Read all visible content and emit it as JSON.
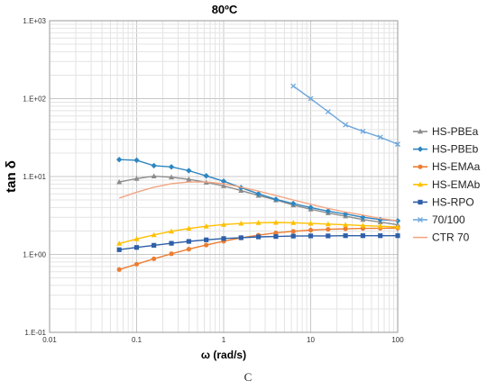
{
  "chart_data": {
    "type": "line",
    "title": "80ºC",
    "xlabel": "ω (rad/s)",
    "ylabel": "tan δ",
    "x_scale": "log",
    "y_scale": "log",
    "xlim": [
      0.01,
      100
    ],
    "ylim": [
      0.1,
      1000
    ],
    "x_tick_labels": [
      "0.01",
      "0.1",
      "1",
      "10",
      "100"
    ],
    "y_tick_labels": [
      "1.E-01",
      "1.E+00",
      "1.E+01",
      "1.E+02",
      "1.E+03"
    ],
    "grid": true,
    "legend_position": "right",
    "series": [
      {
        "name": "HS-PBEa",
        "color": "#8c8c8c",
        "marker": "triangle",
        "x": [
          0.0631,
          0.1,
          0.158,
          0.251,
          0.398,
          0.631,
          1,
          1.585,
          2.512,
          3.981,
          6.31,
          10,
          15.85,
          25.12,
          39.81,
          63.1,
          100
        ],
        "y": [
          8.5,
          9.4,
          10.1,
          9.8,
          9.2,
          8.4,
          7.6,
          6.6,
          5.7,
          5.0,
          4.3,
          3.8,
          3.4,
          3.1,
          2.8,
          2.6,
          2.4
        ]
      },
      {
        "name": "HS-PBEb",
        "color": "#2e86c1",
        "marker": "diamond",
        "x": [
          0.0631,
          0.1,
          0.158,
          0.251,
          0.398,
          0.631,
          1,
          1.585,
          2.512,
          3.981,
          6.31,
          10,
          15.85,
          25.12,
          39.81,
          63.1,
          100
        ],
        "y": [
          16.5,
          16.2,
          13.8,
          13.3,
          11.9,
          10.2,
          8.7,
          7.2,
          6.0,
          5.1,
          4.5,
          4.0,
          3.6,
          3.3,
          3.0,
          2.8,
          2.7
        ]
      },
      {
        "name": "HS-EMAa",
        "color": "#ed7d31",
        "marker": "circle",
        "x": [
          0.0631,
          0.1,
          0.158,
          0.251,
          0.398,
          0.631,
          1,
          1.585,
          2.512,
          3.981,
          6.31,
          10,
          15.85,
          25.12,
          39.81,
          63.1,
          100
        ],
        "y": [
          0.64,
          0.75,
          0.88,
          1.02,
          1.17,
          1.32,
          1.48,
          1.63,
          1.77,
          1.89,
          1.98,
          2.05,
          2.1,
          2.13,
          2.16,
          2.17,
          2.18
        ]
      },
      {
        "name": "HS-EMAb",
        "color": "#ffc000",
        "marker": "triangle",
        "x": [
          0.0631,
          0.1,
          0.158,
          0.251,
          0.398,
          0.631,
          1,
          1.585,
          2.512,
          3.981,
          6.31,
          10,
          15.85,
          25.12,
          39.81,
          63.1,
          100
        ],
        "y": [
          1.38,
          1.58,
          1.78,
          1.98,
          2.15,
          2.3,
          2.42,
          2.5,
          2.55,
          2.57,
          2.55,
          2.5,
          2.45,
          2.4,
          2.35,
          2.3,
          2.25
        ]
      },
      {
        "name": "HS-RPO",
        "color": "#2e5fa8",
        "marker": "square",
        "x": [
          0.0631,
          0.1,
          0.158,
          0.251,
          0.398,
          0.631,
          1,
          1.585,
          2.512,
          3.981,
          6.31,
          10,
          15.85,
          25.12,
          39.81,
          63.1,
          100
        ],
        "y": [
          1.15,
          1.23,
          1.31,
          1.39,
          1.47,
          1.54,
          1.6,
          1.64,
          1.68,
          1.7,
          1.72,
          1.73,
          1.73,
          1.74,
          1.74,
          1.74,
          1.74
        ]
      },
      {
        "name": "70/100",
        "color": "#6fa8dc",
        "marker": "cross",
        "x": [
          6.31,
          10,
          15.85,
          25.12,
          39.81,
          63.1,
          100
        ],
        "y": [
          145,
          100,
          68,
          46,
          38,
          32,
          26
        ]
      },
      {
        "name": "CTR 70",
        "color": "#f4a582",
        "marker": "none",
        "x": [
          0.0631,
          0.1,
          0.158,
          0.251,
          0.398,
          0.631,
          1,
          1.585,
          2.512,
          3.981,
          6.31,
          10,
          15.85,
          25.12,
          39.81,
          63.1,
          100
        ],
        "y": [
          5.3,
          6.3,
          7.3,
          8.1,
          8.5,
          8.5,
          8.1,
          7.3,
          6.5,
          5.7,
          5.0,
          4.4,
          3.9,
          3.5,
          3.2,
          2.9,
          2.7
        ]
      }
    ]
  },
  "caption": "C"
}
